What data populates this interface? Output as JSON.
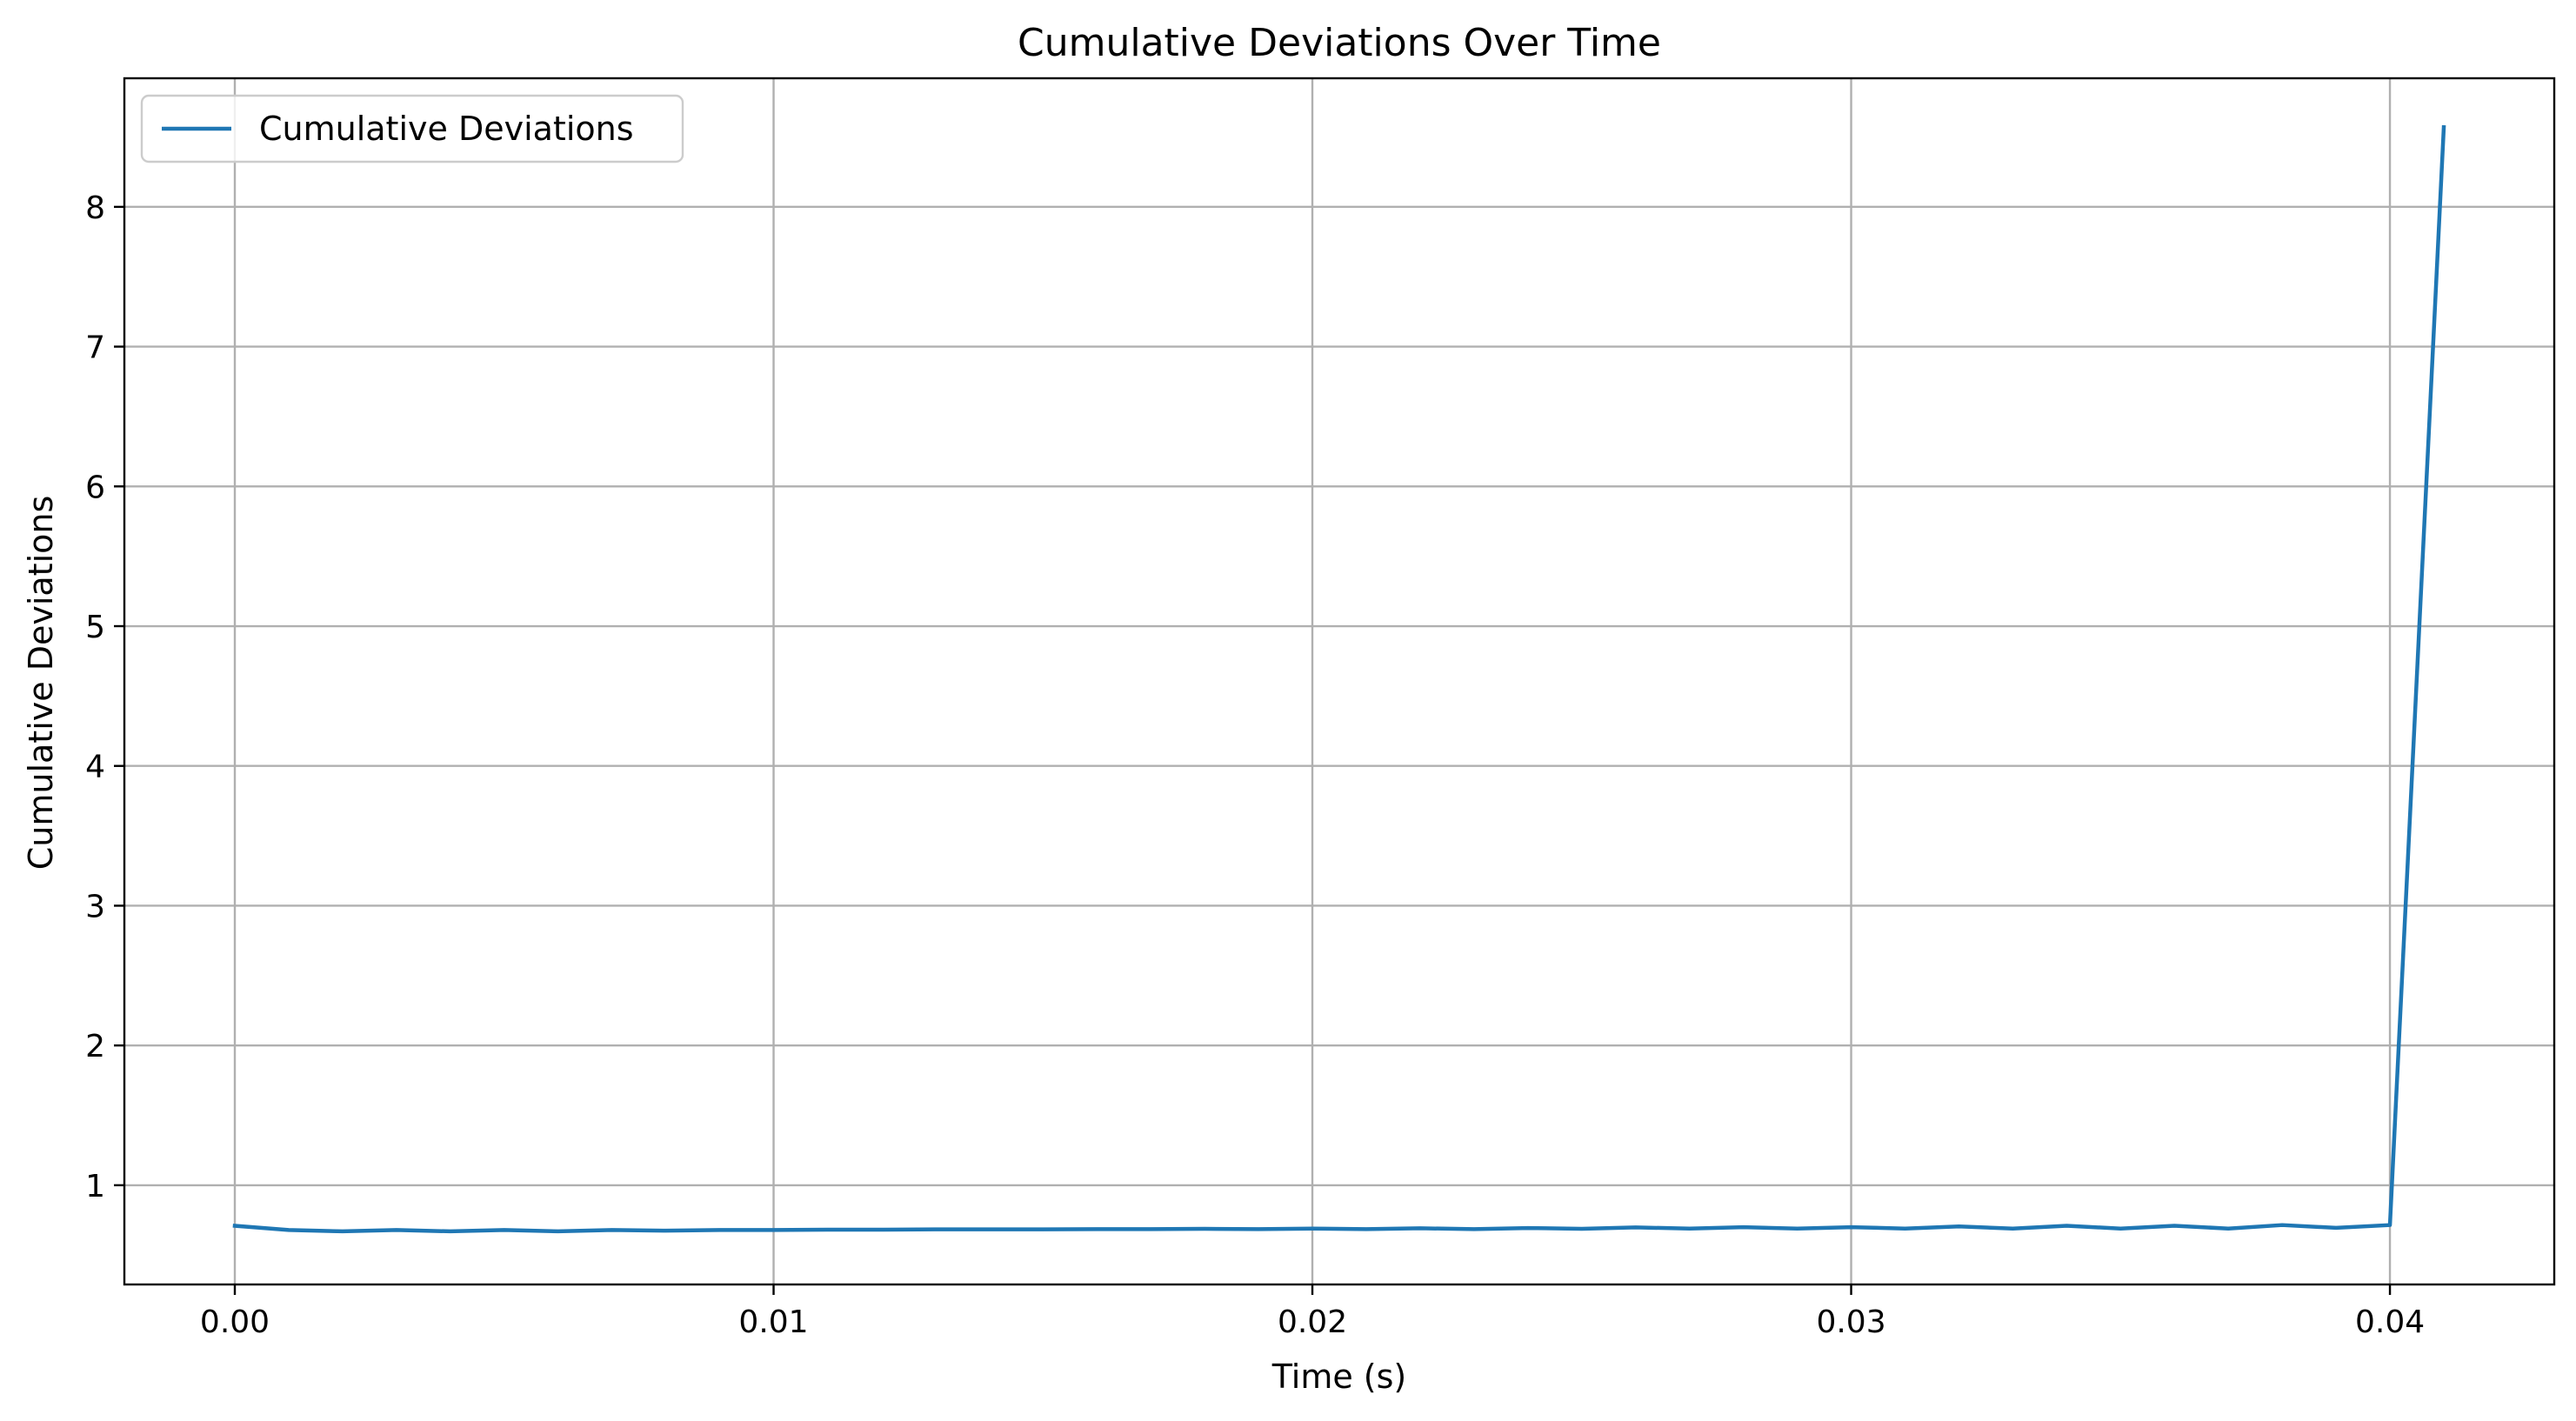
{
  "chart_data": {
    "type": "line",
    "title": "Cumulative Deviations Over Time",
    "xlabel": "Time (s)",
    "ylabel": "Cumulative Deviations",
    "xlim": [
      -0.00205,
      0.04305
    ],
    "ylim": [
      0.29,
      8.92
    ],
    "xticks": [
      0.0,
      0.01,
      0.02,
      0.03,
      0.04
    ],
    "xtick_labels": [
      "0.00",
      "0.01",
      "0.02",
      "0.03",
      "0.04"
    ],
    "yticks": [
      1,
      2,
      3,
      4,
      5,
      6,
      7,
      8
    ],
    "ytick_labels": [
      "1",
      "2",
      "3",
      "4",
      "5",
      "6",
      "7",
      "8"
    ],
    "grid": true,
    "legend_position": "top-left",
    "colors": {
      "series": "#1f77b4",
      "grid": "#b0b0b0"
    },
    "series": [
      {
        "name": "Cumulative Deviations",
        "x": [
          0.0,
          0.001,
          0.002,
          0.003,
          0.004,
          0.005,
          0.006,
          0.007,
          0.008,
          0.009,
          0.01,
          0.011,
          0.012,
          0.013,
          0.014,
          0.015,
          0.016,
          0.017,
          0.018,
          0.019,
          0.02,
          0.021,
          0.022,
          0.023,
          0.024,
          0.025,
          0.026,
          0.027,
          0.028,
          0.029,
          0.03,
          0.031,
          0.032,
          0.033,
          0.034,
          0.035,
          0.036,
          0.037,
          0.038,
          0.039,
          0.04,
          0.041
        ],
        "y": [
          0.71,
          0.68,
          0.67,
          0.68,
          0.67,
          0.68,
          0.67,
          0.68,
          0.675,
          0.68,
          0.68,
          0.682,
          0.682,
          0.684,
          0.684,
          0.684,
          0.686,
          0.686,
          0.688,
          0.686,
          0.69,
          0.686,
          0.692,
          0.686,
          0.694,
          0.688,
          0.698,
          0.69,
          0.7,
          0.69,
          0.7,
          0.69,
          0.705,
          0.69,
          0.71,
          0.69,
          0.71,
          0.69,
          0.715,
          0.695,
          0.715,
          8.57
        ]
      }
    ]
  }
}
